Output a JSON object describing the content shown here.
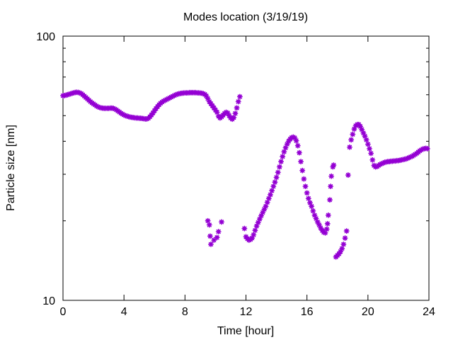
{
  "chart_data": {
    "type": "scatter",
    "title": "Modes location (3/19/19)",
    "xlabel": "Time [hour]",
    "ylabel": "Particle size [nm]",
    "xlim": [
      0,
      24
    ],
    "ylim": [
      10,
      100
    ],
    "yscale": "log",
    "grid": false,
    "legend": "none",
    "marker_color": "#9400d3",
    "x_ticks": [
      0,
      4,
      8,
      12,
      16,
      20,
      24
    ],
    "y_ticks": [
      10,
      100
    ],
    "series": [
      {
        "points": [
          [
            0.0,
            59.5
          ],
          [
            0.1,
            59.6
          ],
          [
            0.2,
            59.8
          ],
          [
            0.3,
            60.0
          ],
          [
            0.4,
            60.3
          ],
          [
            0.5,
            60.5
          ],
          [
            0.6,
            60.8
          ],
          [
            0.7,
            61.0
          ],
          [
            0.8,
            61.2
          ],
          [
            0.9,
            61.3
          ],
          [
            1.0,
            61.2
          ],
          [
            1.1,
            61.0
          ],
          [
            1.2,
            60.6
          ],
          [
            1.3,
            60.0
          ],
          [
            1.4,
            59.3
          ],
          [
            1.5,
            58.6
          ],
          [
            1.6,
            57.9
          ],
          [
            1.7,
            57.2
          ],
          [
            1.8,
            56.5
          ],
          [
            1.9,
            55.9
          ],
          [
            2.0,
            55.4
          ],
          [
            2.1,
            54.9
          ],
          [
            2.2,
            54.4
          ],
          [
            2.3,
            54.0
          ],
          [
            2.4,
            53.7
          ],
          [
            2.5,
            53.5
          ],
          [
            2.6,
            53.4
          ],
          [
            2.7,
            53.3
          ],
          [
            2.8,
            53.3
          ],
          [
            2.9,
            53.3
          ],
          [
            3.0,
            53.3
          ],
          [
            3.1,
            53.4
          ],
          [
            3.2,
            53.4
          ],
          [
            3.3,
            53.3
          ],
          [
            3.4,
            53.0
          ],
          [
            3.5,
            52.6
          ],
          [
            3.6,
            52.1
          ],
          [
            3.7,
            51.6
          ],
          [
            3.8,
            51.1
          ],
          [
            3.9,
            50.7
          ],
          [
            4.0,
            50.3
          ],
          [
            4.1,
            50.0
          ],
          [
            4.2,
            49.8
          ],
          [
            4.3,
            49.6
          ],
          [
            4.4,
            49.4
          ],
          [
            4.5,
            49.3
          ],
          [
            4.6,
            49.2
          ],
          [
            4.7,
            49.1
          ],
          [
            4.8,
            49.0
          ],
          [
            4.9,
            49.0
          ],
          [
            5.0,
            48.9
          ],
          [
            5.1,
            48.9
          ],
          [
            5.2,
            48.8
          ],
          [
            5.3,
            48.7
          ],
          [
            5.4,
            48.6
          ],
          [
            5.5,
            48.6
          ],
          [
            5.6,
            48.9
          ],
          [
            5.7,
            49.5
          ],
          [
            5.8,
            50.3
          ],
          [
            5.9,
            51.2
          ],
          [
            6.0,
            52.2
          ],
          [
            6.1,
            53.2
          ],
          [
            6.2,
            54.1
          ],
          [
            6.3,
            55.0
          ],
          [
            6.4,
            55.7
          ],
          [
            6.5,
            56.3
          ],
          [
            6.6,
            56.8
          ],
          [
            6.7,
            57.2
          ],
          [
            6.8,
            57.6
          ],
          [
            6.9,
            58.0
          ],
          [
            7.0,
            58.4
          ],
          [
            7.1,
            58.8
          ],
          [
            7.2,
            59.2
          ],
          [
            7.3,
            59.6
          ],
          [
            7.4,
            60.0
          ],
          [
            7.5,
            60.3
          ],
          [
            7.6,
            60.5
          ],
          [
            7.7,
            60.7
          ],
          [
            7.8,
            60.8
          ],
          [
            7.9,
            60.9
          ],
          [
            8.0,
            61.0
          ],
          [
            8.1,
            61.0
          ],
          [
            8.2,
            61.0
          ],
          [
            8.3,
            61.1
          ],
          [
            8.4,
            61.1
          ],
          [
            8.5,
            61.1
          ],
          [
            8.6,
            61.1
          ],
          [
            8.7,
            61.1
          ],
          [
            8.8,
            61.0
          ],
          [
            8.9,
            61.0
          ],
          [
            9.0,
            60.9
          ],
          [
            9.1,
            60.8
          ],
          [
            9.2,
            60.6
          ],
          [
            9.3,
            60.2
          ],
          [
            9.4,
            59.4
          ],
          [
            9.5,
            58.0
          ],
          [
            9.6,
            56.5
          ],
          [
            9.7,
            55.5
          ],
          [
            9.8,
            54.5
          ],
          [
            9.9,
            53.5
          ],
          [
            10.0,
            52.5
          ],
          [
            10.1,
            51.5
          ],
          [
            10.2,
            49.8
          ],
          [
            10.3,
            49.0
          ],
          [
            10.4,
            49.5
          ],
          [
            10.5,
            50.2
          ],
          [
            10.6,
            51.0
          ],
          [
            10.7,
            51.5
          ],
          [
            10.8,
            51.2
          ],
          [
            10.9,
            50.0
          ],
          [
            11.0,
            49.0
          ],
          [
            11.1,
            48.5
          ],
          [
            11.2,
            49.2
          ],
          [
            11.3,
            51.0
          ],
          [
            11.4,
            53.5
          ],
          [
            11.5,
            56.5
          ],
          [
            11.6,
            59.0
          ],
          [
            9.5,
            20.0
          ],
          [
            9.6,
            19.3
          ],
          [
            9.65,
            17.5
          ],
          [
            9.7,
            16.3
          ],
          [
            9.9,
            16.9
          ],
          [
            10.1,
            17.3
          ],
          [
            10.2,
            18.2
          ],
          [
            10.4,
            19.8
          ],
          [
            11.9,
            18.7
          ],
          [
            12.0,
            17.4
          ],
          [
            12.1,
            17.1
          ],
          [
            12.2,
            16.9
          ],
          [
            12.3,
            17.0
          ],
          [
            12.4,
            17.2
          ],
          [
            12.5,
            17.7
          ],
          [
            12.6,
            18.4
          ],
          [
            12.7,
            19.1
          ],
          [
            12.8,
            19.7
          ],
          [
            12.9,
            20.3
          ],
          [
            13.0,
            20.9
          ],
          [
            13.1,
            21.5
          ],
          [
            13.2,
            22.1
          ],
          [
            13.3,
            22.7
          ],
          [
            13.4,
            23.5
          ],
          [
            13.5,
            24.3
          ],
          [
            13.6,
            25.1
          ],
          [
            13.7,
            26.0
          ],
          [
            13.8,
            27.0
          ],
          [
            13.9,
            28.0
          ],
          [
            14.0,
            29.2
          ],
          [
            14.1,
            30.5
          ],
          [
            14.2,
            32.0
          ],
          [
            14.3,
            33.5
          ],
          [
            14.4,
            35.0
          ],
          [
            14.5,
            36.5
          ],
          [
            14.6,
            37.8
          ],
          [
            14.7,
            39.0
          ],
          [
            14.8,
            40.0
          ],
          [
            14.9,
            40.8
          ],
          [
            15.0,
            41.3
          ],
          [
            15.1,
            41.5
          ],
          [
            15.2,
            41.2
          ],
          [
            15.3,
            40.2
          ],
          [
            15.4,
            38.5
          ],
          [
            15.5,
            36.2
          ],
          [
            15.6,
            33.5
          ],
          [
            15.7,
            31.0
          ],
          [
            15.8,
            28.8
          ],
          [
            15.9,
            27.0
          ],
          [
            16.0,
            25.5
          ],
          [
            16.1,
            24.3
          ],
          [
            16.2,
            23.4
          ],
          [
            16.3,
            22.7
          ],
          [
            16.4,
            21.8
          ],
          [
            16.5,
            21.0
          ],
          [
            16.6,
            20.4
          ],
          [
            16.7,
            19.8
          ],
          [
            16.8,
            19.3
          ],
          [
            16.9,
            18.8
          ],
          [
            17.0,
            18.4
          ],
          [
            17.1,
            18.1
          ],
          [
            17.2,
            18.0
          ],
          [
            17.3,
            18.6
          ],
          [
            17.35,
            19.5
          ],
          [
            17.4,
            21.0
          ],
          [
            17.5,
            24.0
          ],
          [
            17.55,
            27.0
          ],
          [
            17.6,
            29.5
          ],
          [
            17.7,
            32.0
          ],
          [
            17.75,
            32.5
          ],
          [
            17.9,
            14.6
          ],
          [
            18.0,
            14.8
          ],
          [
            18.1,
            15.0
          ],
          [
            18.2,
            15.3
          ],
          [
            18.3,
            15.7
          ],
          [
            18.4,
            16.3
          ],
          [
            18.5,
            17.2
          ],
          [
            18.6,
            18.3
          ],
          [
            18.7,
            29.8
          ],
          [
            18.8,
            38.0
          ],
          [
            18.9,
            40.5
          ],
          [
            19.0,
            42.5
          ],
          [
            19.1,
            44.5
          ],
          [
            19.2,
            45.8
          ],
          [
            19.3,
            46.3
          ],
          [
            19.4,
            46.3
          ],
          [
            19.5,
            45.5
          ],
          [
            19.6,
            44.3
          ],
          [
            19.7,
            43.0
          ],
          [
            19.8,
            41.8
          ],
          [
            19.9,
            40.5
          ],
          [
            20.0,
            39.0
          ],
          [
            20.1,
            37.5
          ],
          [
            20.2,
            36.0
          ],
          [
            20.3,
            34.0
          ],
          [
            20.4,
            32.4
          ],
          [
            20.5,
            32.0
          ],
          [
            20.6,
            32.1
          ],
          [
            20.7,
            32.4
          ],
          [
            20.8,
            32.7
          ],
          [
            20.9,
            32.9
          ],
          [
            21.0,
            33.1
          ],
          [
            21.1,
            33.3
          ],
          [
            21.2,
            33.4
          ],
          [
            21.3,
            33.5
          ],
          [
            21.4,
            33.5
          ],
          [
            21.5,
            33.6
          ],
          [
            21.6,
            33.6
          ],
          [
            21.7,
            33.7
          ],
          [
            21.8,
            33.7
          ],
          [
            21.9,
            33.8
          ],
          [
            22.0,
            33.8
          ],
          [
            22.1,
            33.9
          ],
          [
            22.2,
            34.0
          ],
          [
            22.3,
            34.1
          ],
          [
            22.4,
            34.2
          ],
          [
            22.5,
            34.3
          ],
          [
            22.6,
            34.5
          ],
          [
            22.7,
            34.7
          ],
          [
            22.8,
            34.9
          ],
          [
            22.9,
            35.1
          ],
          [
            23.0,
            35.4
          ],
          [
            23.1,
            35.7
          ],
          [
            23.2,
            36.0
          ],
          [
            23.3,
            36.4
          ],
          [
            23.4,
            36.8
          ],
          [
            23.5,
            37.1
          ],
          [
            23.6,
            37.4
          ],
          [
            23.7,
            37.5
          ],
          [
            23.8,
            37.6
          ],
          [
            23.9,
            37.5
          ]
        ]
      }
    ]
  }
}
